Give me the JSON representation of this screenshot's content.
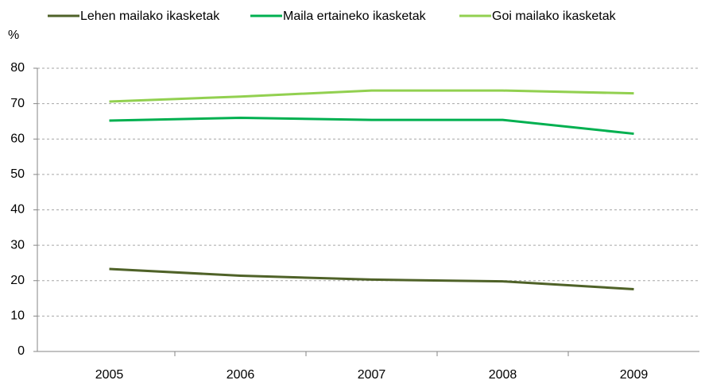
{
  "chart_data": {
    "type": "line",
    "y_axis_label": "%",
    "categories": [
      "2005",
      "2006",
      "2007",
      "2008",
      "2009"
    ],
    "series": [
      {
        "name": "Lehen mailako ikasketak",
        "color": "#4f6228",
        "values": [
          23.3,
          21.4,
          20.3,
          19.8,
          17.6
        ]
      },
      {
        "name": "Maila ertaineko ikasketak",
        "color": "#00b050",
        "values": [
          65.2,
          66.0,
          65.4,
          65.4,
          61.5
        ]
      },
      {
        "name": "Goi mailako ikasketak",
        "color": "#92d050",
        "values": [
          70.6,
          72.0,
          73.7,
          73.7,
          72.9
        ]
      }
    ],
    "ylim": [
      0,
      80
    ],
    "yticks": [
      0,
      10,
      20,
      30,
      40,
      50,
      60,
      70,
      80
    ],
    "grid": true,
    "legend": "top"
  }
}
